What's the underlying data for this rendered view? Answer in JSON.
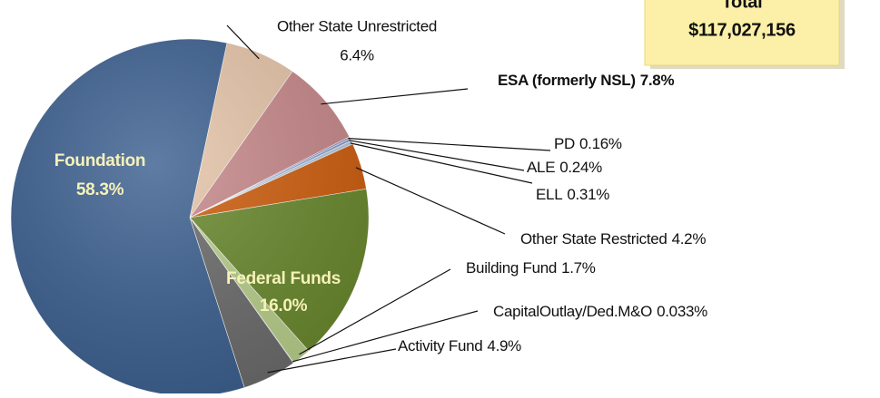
{
  "chart_data": {
    "type": "pie",
    "categories": [
      "Other State Unrestricted",
      "ESA (formerly NSL)",
      "PD",
      "ALE",
      "ELL",
      "Other State Restricted",
      "Federal Funds",
      "Building Fund",
      "CapitalOutlay/Ded.M&O",
      "Activity Fund",
      "Foundation"
    ],
    "values": [
      6.4,
      7.8,
      0.16,
      0.24,
      0.31,
      4.2,
      16.0,
      1.7,
      0.033,
      4.9,
      58.3
    ],
    "value_labels": [
      "6.4%",
      "7.8%",
      "0.16%",
      "0.24%",
      "0.31%",
      "4.2%",
      "16.0%",
      "1.7%",
      "0.033%",
      "4.9%",
      "58.3%"
    ],
    "colors": [
      "#e7c6aa",
      "#c98a8c",
      "#9b8fc2",
      "#86a5cf",
      "#b8c9e2",
      "#cf5f0f",
      "#6a8a2e",
      "#b9d08c",
      "#dcdcdc",
      "#6c6c6c",
      "#3c6090"
    ],
    "total_label": "Total",
    "total_value": "$117,027,156"
  }
}
